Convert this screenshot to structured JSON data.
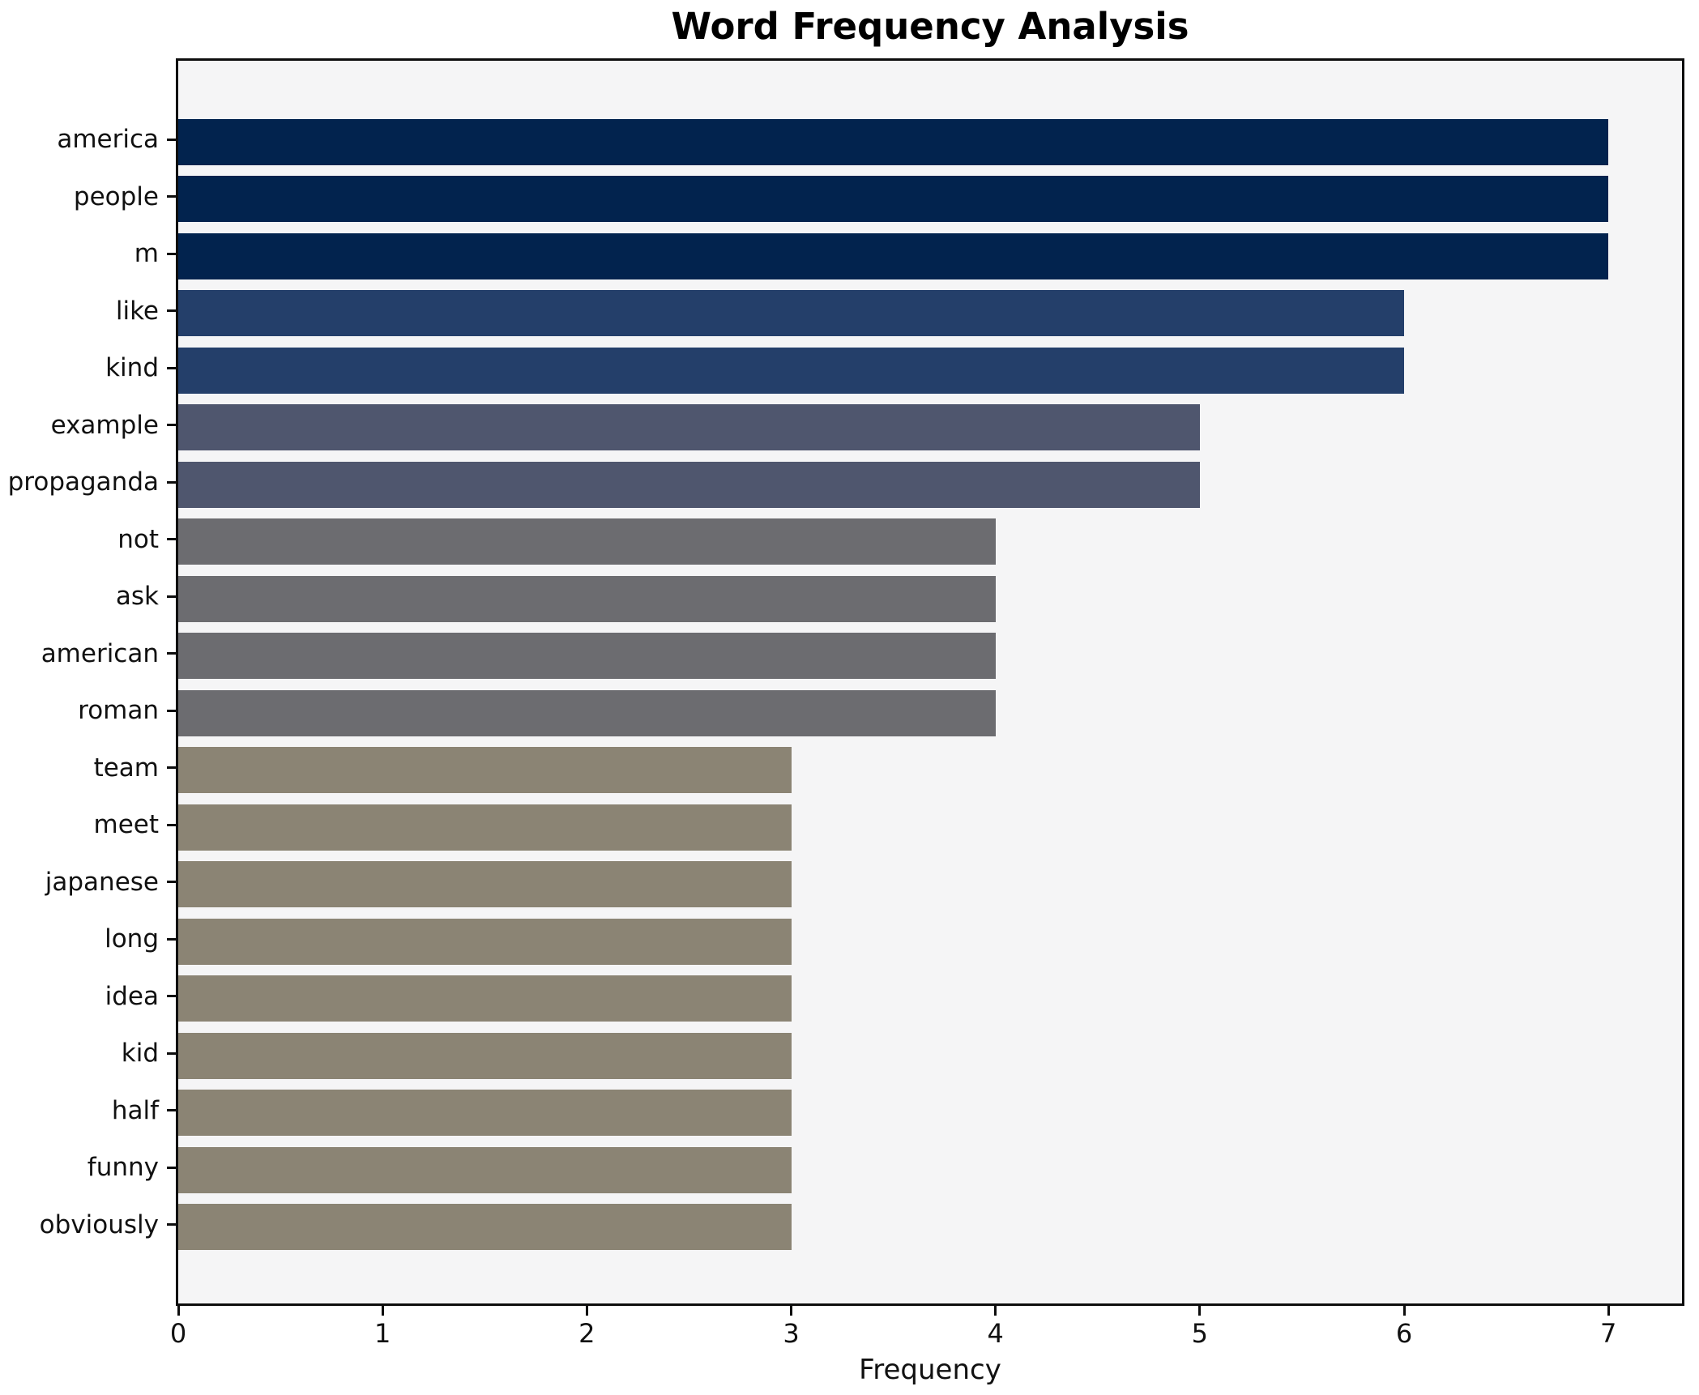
{
  "title": "Word Frequency Analysis",
  "chart_data": {
    "type": "bar",
    "orientation": "horizontal",
    "title": "Word Frequency Analysis",
    "xlabel": "Frequency",
    "ylabel": "",
    "grid": false,
    "legend": null,
    "plot_background": "#f5f5f6",
    "frame_color": "#0d0d0d",
    "xlim": [
      0,
      7.36
    ],
    "x_ticks": [
      "0",
      "1",
      "2",
      "3",
      "4",
      "5",
      "6",
      "7"
    ],
    "categories": [
      "america",
      "people",
      "m",
      "like",
      "kind",
      "example",
      "propaganda",
      "not",
      "ask",
      "american",
      "roman",
      "team",
      "meet",
      "japanese",
      "long",
      "idea",
      "kid",
      "half",
      "funny",
      "obviously"
    ],
    "values": [
      7,
      7,
      7,
      6,
      6,
      5,
      5,
      4,
      4,
      4,
      4,
      3,
      3,
      3,
      3,
      3,
      3,
      3,
      3,
      3
    ],
    "colors_by_value": {
      "7": "#02234e",
      "6": "#243f6a",
      "5": "#4f566e",
      "4": "#6c6c70",
      "3": "#8b8474"
    }
  }
}
